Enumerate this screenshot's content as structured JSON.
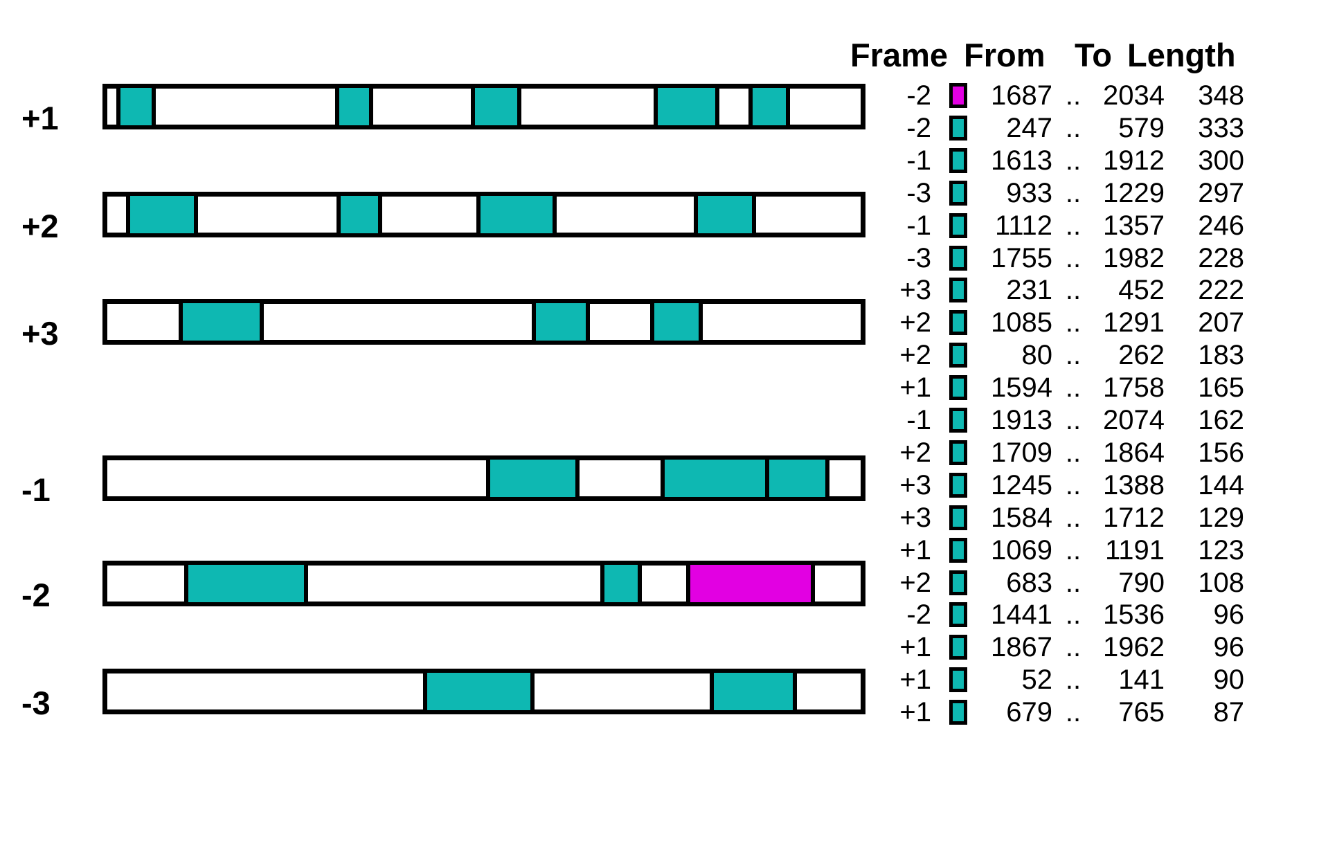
{
  "colors": {
    "orf_fill": "#0EB8B2",
    "highlighted_orf_fill": "#E200E2",
    "outline": "#000000",
    "bar_background": "#FFFFFF",
    "page_background": "#FFFFFF"
  },
  "chart_data": {
    "type": "bar",
    "subtype": "open-reading-frame-interval-map",
    "orientation": "horizontal-intervals",
    "frame_order": [
      "+1",
      "+2",
      "+3",
      "-1",
      "-2",
      "-3"
    ],
    "x_range_estimate": [
      0,
      2190
    ],
    "grid": false,
    "legend_position": "right-table",
    "legend_table": {
      "headers": [
        "Frame",
        "From",
        "To",
        "Length"
      ],
      "range_separator": "..",
      "rows": [
        {
          "frame": "-2",
          "from": 1687,
          "to": 2034,
          "length": 348,
          "highlighted": true
        },
        {
          "frame": "-2",
          "from": 247,
          "to": 579,
          "length": 333,
          "highlighted": false
        },
        {
          "frame": "-1",
          "from": 1613,
          "to": 1912,
          "length": 300,
          "highlighted": false
        },
        {
          "frame": "-3",
          "from": 933,
          "to": 1229,
          "length": 297,
          "highlighted": false
        },
        {
          "frame": "-1",
          "from": 1112,
          "to": 1357,
          "length": 246,
          "highlighted": false
        },
        {
          "frame": "-3",
          "from": 1755,
          "to": 1982,
          "length": 228,
          "highlighted": false
        },
        {
          "frame": "+3",
          "from": 231,
          "to": 452,
          "length": 222,
          "highlighted": false
        },
        {
          "frame": "+2",
          "from": 1085,
          "to": 1291,
          "length": 207,
          "highlighted": false
        },
        {
          "frame": "+2",
          "from": 80,
          "to": 262,
          "length": 183,
          "highlighted": false
        },
        {
          "frame": "+1",
          "from": 1594,
          "to": 1758,
          "length": 165,
          "highlighted": false
        },
        {
          "frame": "-1",
          "from": 1913,
          "to": 2074,
          "length": 162,
          "highlighted": false
        },
        {
          "frame": "+2",
          "from": 1709,
          "to": 1864,
          "length": 156,
          "highlighted": false
        },
        {
          "frame": "+3",
          "from": 1245,
          "to": 1388,
          "length": 144,
          "highlighted": false
        },
        {
          "frame": "+3",
          "from": 1584,
          "to": 1712,
          "length": 129,
          "highlighted": false
        },
        {
          "frame": "+1",
          "from": 1069,
          "to": 1191,
          "length": 123,
          "highlighted": false
        },
        {
          "frame": "+2",
          "from": 683,
          "to": 790,
          "length": 108,
          "highlighted": false
        },
        {
          "frame": "-2",
          "from": 1441,
          "to": 1536,
          "length": 96,
          "highlighted": false
        },
        {
          "frame": "+1",
          "from": 1867,
          "to": 1962,
          "length": 96,
          "highlighted": false
        },
        {
          "frame": "+1",
          "from": 52,
          "to": 141,
          "length": 90,
          "highlighted": false
        },
        {
          "frame": "+1",
          "from": 679,
          "to": 765,
          "length": 87,
          "highlighted": false
        }
      ]
    }
  }
}
